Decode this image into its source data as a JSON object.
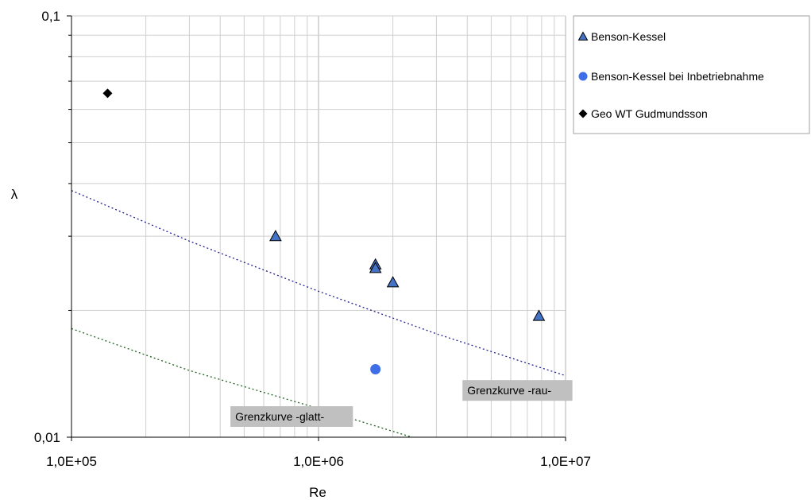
{
  "chart_data": {
    "type": "scatter",
    "x_scale": "log",
    "y_scale": "log",
    "xlabel": "Re",
    "ylabel": "λ",
    "xlim": [
      100000,
      10000000
    ],
    "ylim": [
      0.01,
      0.1
    ],
    "x_tick_labels": [
      "1,0E+05",
      "1,0E+06",
      "1,0E+07"
    ],
    "y_tick_labels": [
      "0,01",
      "0,1"
    ],
    "grid": "on",
    "legend_position": "top-right",
    "series": [
      {
        "name": "Benson-Kessel",
        "marker": "triangle",
        "color": "#4472c4",
        "points": [
          {
            "x": 670000,
            "y": 0.03
          },
          {
            "x": 1700000,
            "y": 0.0257
          },
          {
            "x": 1700000,
            "y": 0.0252
          },
          {
            "x": 2000000,
            "y": 0.0233
          },
          {
            "x": 7800000,
            "y": 0.0194
          }
        ]
      },
      {
        "name": "Benson-Kessel bei Inbetriebnahme",
        "marker": "circle",
        "color": "#3f6fe8",
        "points": [
          {
            "x": 1700000,
            "y": 0.0145
          }
        ]
      },
      {
        "name": "Geo WT Gudmundsson",
        "marker": "diamond",
        "color": "#000000",
        "points": [
          {
            "x": 140000,
            "y": 0.0655
          }
        ]
      }
    ],
    "curves": [
      {
        "name": "Grenzkurve -rau-",
        "color": "#1f1f8f",
        "style": "dotted",
        "points": [
          {
            "x": 100000,
            "y": 0.0385
          },
          {
            "x": 300000,
            "y": 0.0292
          },
          {
            "x": 1000000,
            "y": 0.0222
          },
          {
            "x": 3000000,
            "y": 0.0176
          },
          {
            "x": 10000000,
            "y": 0.014
          }
        ]
      },
      {
        "name": "Grenzkurve -glatt-",
        "color": "#1f5f1f",
        "style": "dotted",
        "points": [
          {
            "x": 100000,
            "y": 0.0181
          },
          {
            "x": 300000,
            "y": 0.0144
          },
          {
            "x": 1000000,
            "y": 0.0117
          },
          {
            "x": 2600000,
            "y": 0.00985
          }
        ]
      }
    ],
    "annotations": [
      {
        "text": "Grenzkurve -rau-",
        "x": 4000000,
        "y": 0.0128
      },
      {
        "text": "Grenzkurve -glatt-",
        "x": 460000,
        "y": 0.0111
      }
    ]
  }
}
